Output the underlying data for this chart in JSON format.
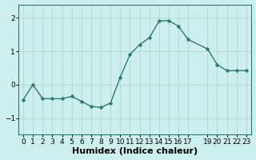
{
  "x": [
    0,
    1,
    2,
    3,
    4,
    5,
    6,
    7,
    8,
    9,
    10,
    11,
    12,
    13,
    14,
    15,
    16,
    17,
    19,
    20,
    21,
    22,
    23
  ],
  "y": [
    -0.45,
    0.0,
    -0.42,
    -0.42,
    -0.42,
    -0.35,
    -0.5,
    -0.65,
    -0.68,
    -0.55,
    0.22,
    0.9,
    1.2,
    1.4,
    1.9,
    1.92,
    1.75,
    1.35,
    1.07,
    0.6,
    0.42,
    0.42,
    0.42
  ],
  "bg_color": "#cdf0ee",
  "grid_color": "#b8dbd8",
  "line_color": "#2d7a72",
  "marker_color": "#2d7a72",
  "xlabel": "Humidex (Indice chaleur)",
  "xlabel_fontsize": 8,
  "ylim": [
    -1.5,
    2.4
  ],
  "yticks": [
    -1,
    0,
    1,
    2
  ],
  "xlim": [
    -0.5,
    23.5
  ],
  "xtick_positions": [
    0,
    1,
    2,
    3,
    4,
    5,
    6,
    7,
    8,
    9,
    10,
    11,
    12,
    13,
    14,
    15,
    16,
    17,
    19,
    20,
    21,
    22,
    23
  ],
  "xtick_labels": [
    "0",
    "1",
    "2",
    "3",
    "4",
    "5",
    "6",
    "7",
    "8",
    "9",
    "10",
    "11",
    "12",
    "13",
    "14",
    "15",
    "16",
    "17",
    "19",
    "20",
    "21",
    "22",
    "23"
  ],
  "tick_fontsize": 6.5,
  "spine_color": "#2d7a72"
}
